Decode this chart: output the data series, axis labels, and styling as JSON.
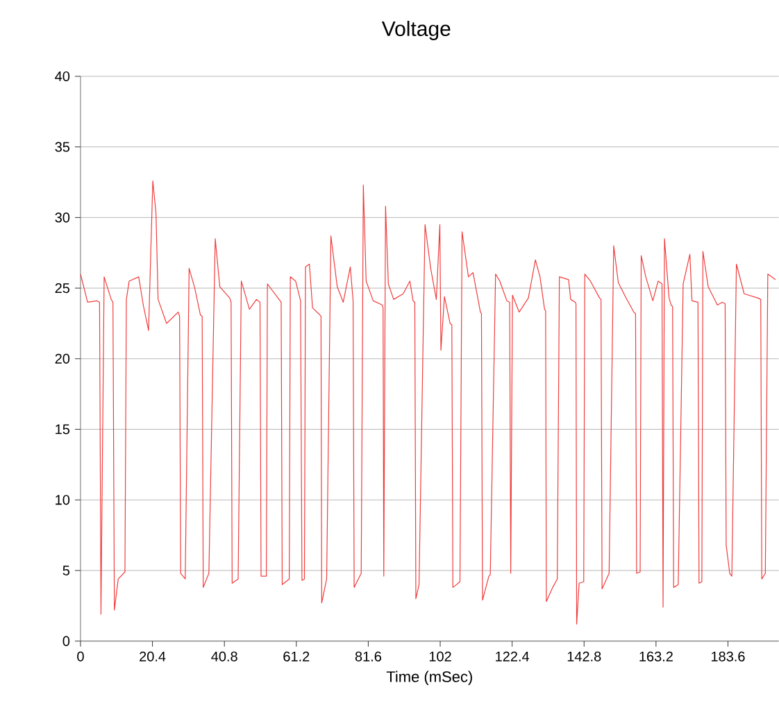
{
  "chart_data": {
    "type": "line",
    "title": "Voltage",
    "xlabel": "Time (mSec)",
    "xlim": [
      0,
      198
    ],
    "ylim": [
      0,
      40
    ],
    "xticks": [
      0,
      20.4,
      40.8,
      61.2,
      81.6,
      102,
      122.4,
      142.8,
      163.2,
      183.6
    ],
    "yticks": [
      0,
      5,
      10,
      15,
      20,
      25,
      30,
      35,
      40
    ],
    "grid": "y",
    "marker": "none",
    "line_style": "solid",
    "series": [
      {
        "color": "#f03c3c",
        "x": [
          0,
          2,
          4.7,
          5.4,
          5.8,
          6.7,
          8.7,
          9.2,
          9.6,
          10.7,
          12.6,
          13,
          13.8,
          16.5,
          17.8,
          19.3,
          20.5,
          21.4,
          22,
          24.4,
          27.7,
          28.1,
          28.4,
          29.7,
          30.8,
          32.4,
          34,
          34.5,
          34.8,
          36.4,
          38.2,
          39.5,
          42.3,
          42.7,
          43,
          44.7,
          45.6,
          47.9,
          49.9,
          50.9,
          51.2,
          52.7,
          53,
          56.6,
          56.9,
          57.2,
          59.2,
          59.5,
          61,
          62.4,
          62.8,
          63.5,
          63.8,
          64.9,
          65.8,
          67.9,
          68.2,
          68.4,
          69.8,
          71,
          72.8,
          74.5,
          76.5,
          77.3,
          77.6,
          79.6,
          80.2,
          81,
          83,
          85.6,
          85.8,
          86,
          86.5,
          87.3,
          88.8,
          91.5,
          93.4,
          94.3,
          94.8,
          95.1,
          96,
          97.7,
          99.3,
          100.9,
          101.9,
          102.2,
          103.2,
          104.8,
          105.3,
          105.6,
          107.6,
          108.2,
          110,
          111.3,
          113.4,
          113.7,
          114,
          115.8,
          116.2,
          117.7,
          118.9,
          120.9,
          121.7,
          122,
          122.5,
          124.4,
          127,
          129,
          130.3,
          131.6,
          131.9,
          132.1,
          133.9,
          135.2,
          135.8,
          138.4,
          139,
          140.3,
          140.5,
          140.7,
          141.4,
          142.7,
          143,
          144.6,
          147.2,
          147.6,
          147.9,
          149.9,
          151.2,
          152.5,
          154.5,
          156.9,
          157.4,
          157.7,
          158.7,
          159,
          160.3,
          162.3,
          163.8,
          164.9,
          165.2,
          165.6,
          166.9,
          167.5,
          167.9,
          168.2,
          169.5,
          170.9,
          172.8,
          173.4,
          175.1,
          175.4,
          176.2,
          176.5,
          178,
          180.6,
          182,
          182.8,
          183.1,
          184.1,
          184.7,
          186,
          188.2,
          192.1,
          192.9,
          193.2,
          194.2,
          194.9,
          197.1
        ],
        "values": [
          26,
          24,
          24.1,
          24,
          1.9,
          25.8,
          24.2,
          24,
          2.2,
          4.4,
          4.9,
          24.2,
          25.5,
          25.8,
          23.8,
          22,
          32.6,
          30.3,
          24.2,
          22.5,
          23.3,
          23,
          4.8,
          4.4,
          26.4,
          25,
          23.1,
          23,
          3.8,
          4.8,
          28.5,
          25.1,
          24.3,
          24,
          4.1,
          4.4,
          25.5,
          23.5,
          24.2,
          24,
          4.6,
          4.6,
          25.3,
          24.1,
          24,
          4,
          4.4,
          25.8,
          25.5,
          24.1,
          4.3,
          4.4,
          26.5,
          26.7,
          23.6,
          23.1,
          23,
          2.7,
          4.4,
          28.7,
          25.1,
          24,
          26.5,
          24.1,
          3.8,
          4.8,
          32.3,
          25.5,
          24.1,
          23.8,
          23.6,
          4.6,
          30.8,
          25.3,
          24.2,
          24.6,
          25.5,
          24.1,
          24,
          3,
          4,
          29.5,
          26.4,
          24.2,
          29.5,
          20.6,
          24.4,
          22.5,
          22.4,
          3.8,
          4.2,
          29,
          25.8,
          26.1,
          23.3,
          23.2,
          2.9,
          4.6,
          4.7,
          26,
          25.5,
          24.1,
          24,
          4.8,
          24.5,
          23.3,
          24.3,
          27,
          25.8,
          23.5,
          23.4,
          2.8,
          3.8,
          4.4,
          25.8,
          25.6,
          24.2,
          24,
          23.9,
          1.2,
          4.1,
          4.2,
          26,
          25.5,
          24.3,
          24.2,
          3.7,
          4.8,
          28,
          25.4,
          24.4,
          23.3,
          23.2,
          4.8,
          4.9,
          27.3,
          25.8,
          24.1,
          25.5,
          25.3,
          2.4,
          28.5,
          24.3,
          23.8,
          23.7,
          3.8,
          4,
          25.3,
          27.4,
          24.1,
          24,
          4.1,
          4.2,
          27.6,
          25.1,
          23.8,
          24,
          23.9,
          6.8,
          4.8,
          4.6,
          26.7,
          24.6,
          24.3,
          24.2,
          4.4,
          4.8,
          26,
          25.6
        ]
      }
    ]
  }
}
